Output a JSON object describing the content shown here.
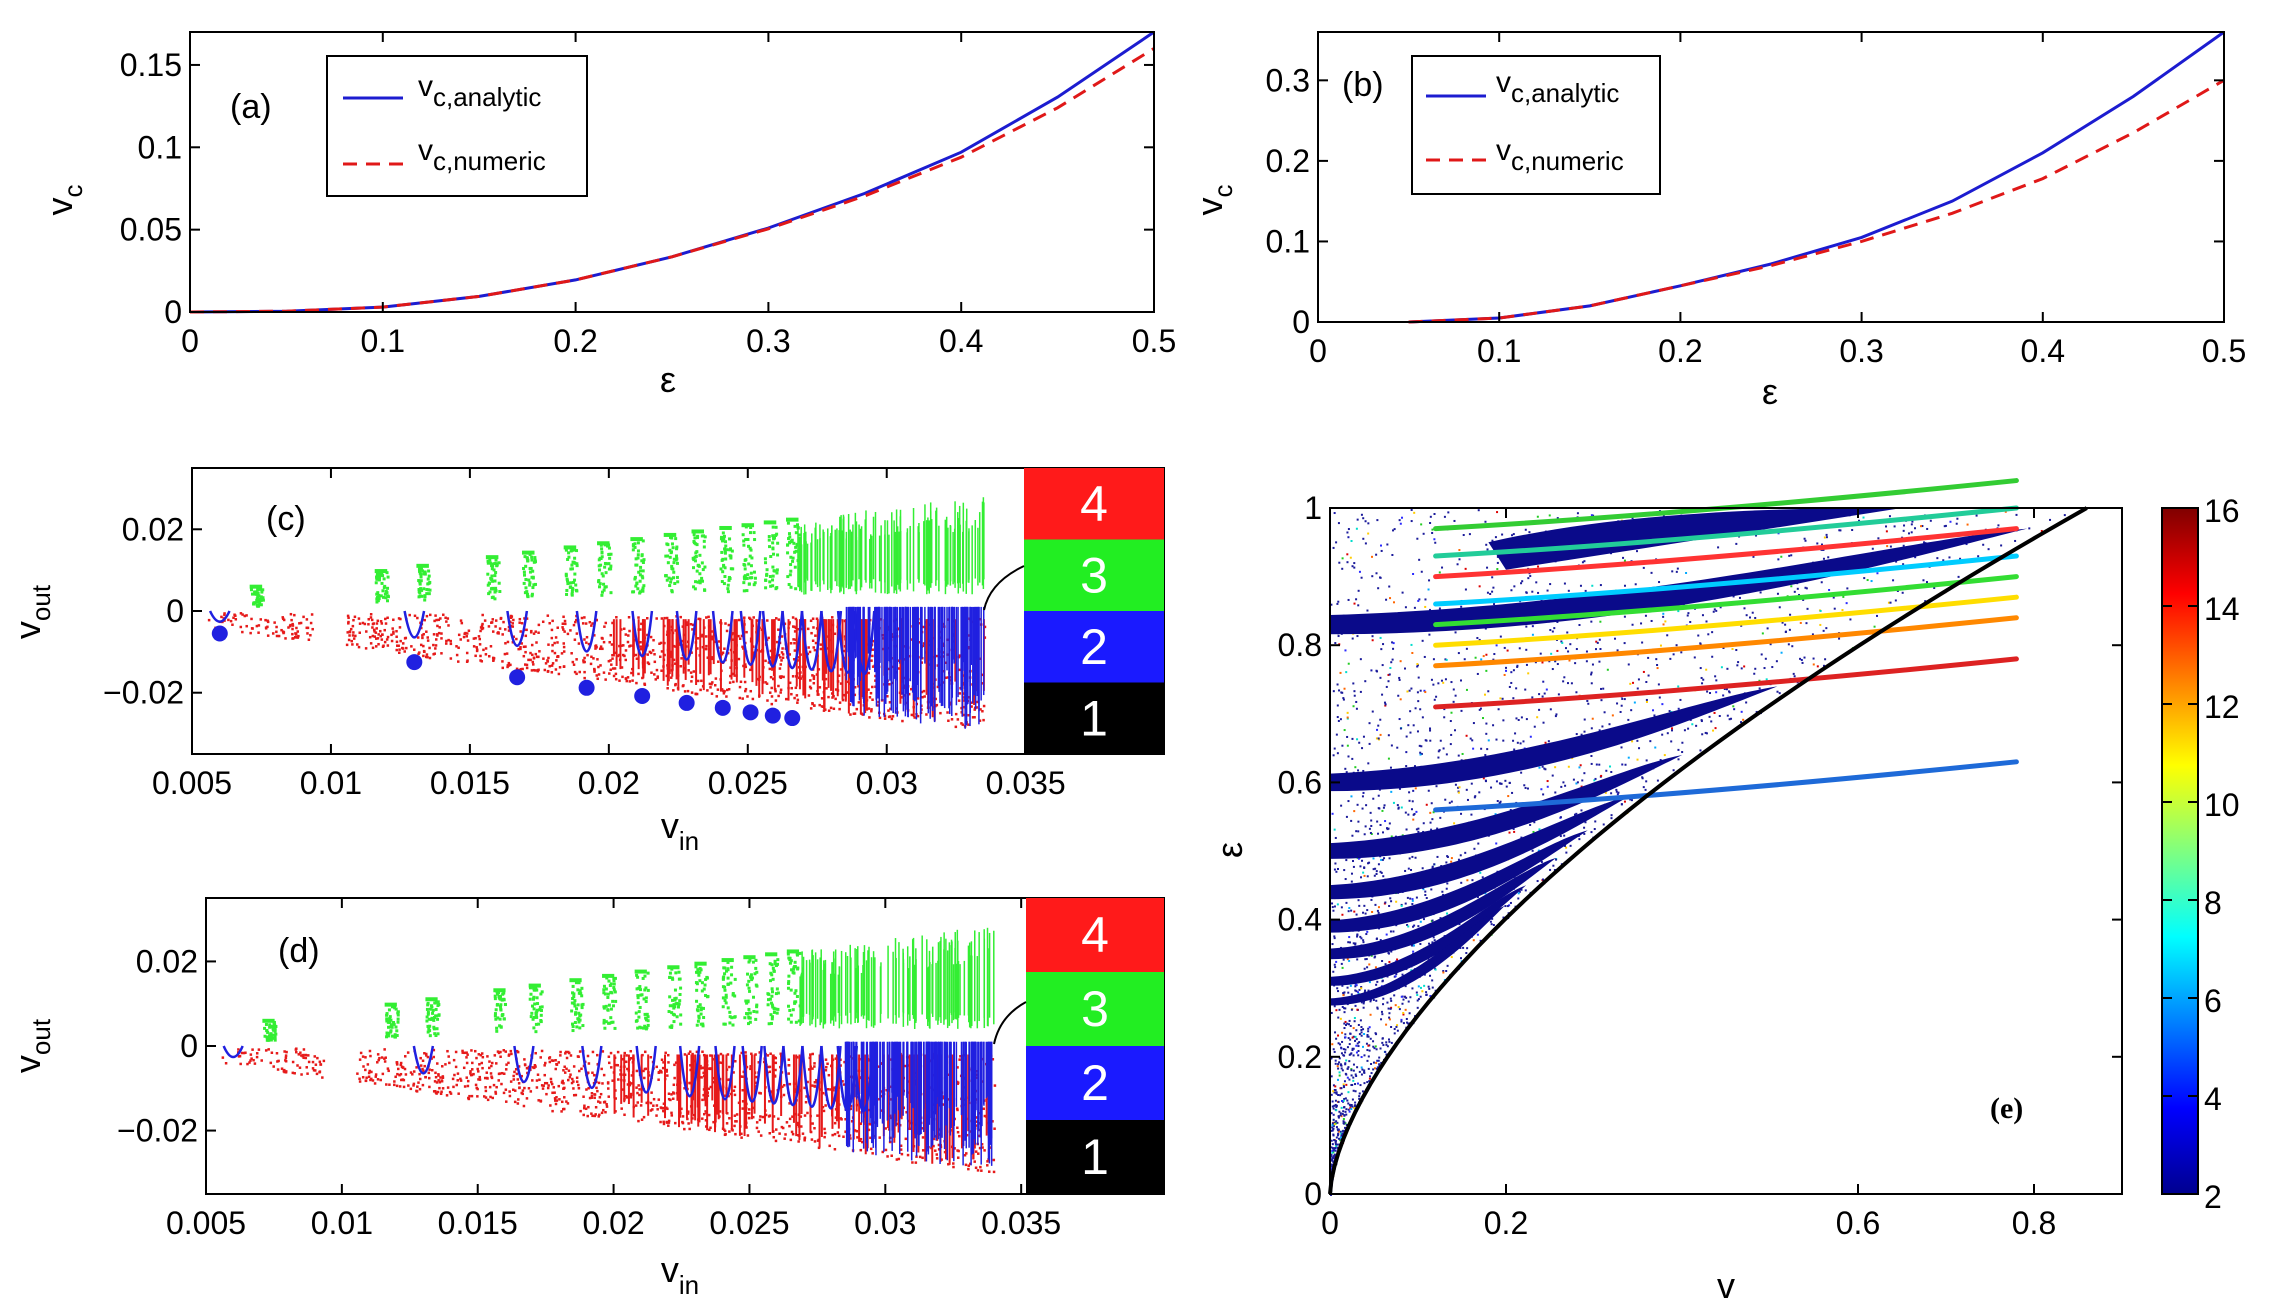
{
  "chart_data": [
    {
      "id": "a",
      "type": "line",
      "panel_label": "(a)",
      "xlabel": "ε",
      "ylabel": "v",
      "ylabel_sub": "c",
      "xlim": [
        0,
        0.5
      ],
      "ylim": [
        0,
        0.17
      ],
      "xticks": [
        0,
        0.1,
        0.2,
        0.3,
        0.4,
        0.5
      ],
      "xtick_labels": [
        "0",
        "0.1",
        "0.2",
        "0.3",
        "0.4",
        "0.5"
      ],
      "yticks": [
        0,
        0.05,
        0.1,
        0.15
      ],
      "ytick_labels": [
        "0",
        "0.05",
        "0.1",
        "0.15"
      ],
      "legend": [
        {
          "main": "v",
          "sub": "c,analytic",
          "color": "#1c1cd0",
          "dash": "solid"
        },
        {
          "main": "v",
          "sub": "c,numeric",
          "color": "#e01818",
          "dash": "dashed"
        }
      ],
      "series": [
        {
          "name": "v_c,analytic",
          "color": "#1c1cd0",
          "dash": "solid",
          "x": [
            0,
            0.05,
            0.1,
            0.15,
            0.2,
            0.25,
            0.3,
            0.35,
            0.4,
            0.45,
            0.5
          ],
          "y": [
            0,
            0.0005,
            0.003,
            0.0095,
            0.0195,
            0.0335,
            0.051,
            0.072,
            0.097,
            0.1305,
            0.17
          ]
        },
        {
          "name": "v_c,numeric",
          "color": "#e01818",
          "dash": "dashed",
          "x": [
            0,
            0.05,
            0.1,
            0.15,
            0.2,
            0.25,
            0.3,
            0.35,
            0.4,
            0.45,
            0.5
          ],
          "y": [
            0,
            0.0005,
            0.003,
            0.0095,
            0.0195,
            0.0335,
            0.0505,
            0.0705,
            0.094,
            0.124,
            0.16
          ]
        }
      ]
    },
    {
      "id": "b",
      "type": "line",
      "panel_label": "(b)",
      "xlabel": "ε",
      "ylabel": "v",
      "ylabel_sub": "c",
      "xlim": [
        0,
        0.5
      ],
      "ylim": [
        0,
        0.36
      ],
      "xticks": [
        0,
        0.1,
        0.2,
        0.3,
        0.4,
        0.5
      ],
      "xtick_labels": [
        "0",
        "0.1",
        "0.2",
        "0.3",
        "0.4",
        "0.5"
      ],
      "yticks": [
        0,
        0.1,
        0.2,
        0.3
      ],
      "ytick_labels": [
        "0",
        "0.1",
        "0.2",
        "0.3"
      ],
      "legend": [
        {
          "main": "v",
          "sub": "c,analytic",
          "color": "#1c1cd0",
          "dash": "solid"
        },
        {
          "main": "v",
          "sub": "c,numeric",
          "color": "#e01818",
          "dash": "dashed"
        }
      ],
      "series": [
        {
          "name": "v_c,analytic",
          "color": "#1c1cd0",
          "dash": "solid",
          "x": [
            0.05,
            0.1,
            0.15,
            0.2,
            0.25,
            0.3,
            0.35,
            0.4,
            0.45,
            0.5
          ],
          "y": [
            0,
            0.005,
            0.02,
            0.045,
            0.072,
            0.105,
            0.15,
            0.21,
            0.28,
            0.36
          ]
        },
        {
          "name": "v_c,numeric",
          "color": "#e01818",
          "dash": "dashed",
          "x": [
            0.05,
            0.1,
            0.15,
            0.2,
            0.25,
            0.3,
            0.35,
            0.4,
            0.45,
            0.5
          ],
          "y": [
            0,
            0.005,
            0.02,
            0.045,
            0.07,
            0.1,
            0.135,
            0.178,
            0.235,
            0.3
          ]
        }
      ]
    },
    {
      "id": "c",
      "type": "scatter",
      "panel_label": "(c)",
      "xlabel": "v",
      "xlabel_sub": "in",
      "ylabel": "v",
      "ylabel_sub": "out",
      "xlim": [
        0.005,
        0.0335
      ],
      "ylim": [
        -0.035,
        0.035
      ],
      "xticks": [
        0.005,
        0.01,
        0.015,
        0.02,
        0.025,
        0.03,
        0.035
      ],
      "xtick_labels": [
        "0.005",
        "0.01",
        "0.015",
        "0.02",
        "0.025",
        "0.03",
        "0.035"
      ],
      "yticks": [
        0.02,
        0,
        -0.02
      ],
      "ytick_labels": [
        "0.02",
        "0",
        "−0.02"
      ],
      "bands": [
        {
          "label": "4",
          "color": "#ff1a1a"
        },
        {
          "label": "3",
          "color": "#22ee22"
        },
        {
          "label": "2",
          "color": "#1a1aff"
        },
        {
          "label": "1",
          "color": "#000000"
        }
      ],
      "dot_markers_x": [
        0.006,
        0.013,
        0.0167,
        0.0192,
        0.0212,
        0.0228,
        0.0241,
        0.0251,
        0.0259,
        0.0266
      ],
      "dot_markers_y": [
        -0.0055,
        -0.0125,
        -0.0162,
        -0.0188,
        -0.0208,
        -0.0225,
        -0.0237,
        -0.0248,
        -0.0256,
        -0.0262
      ]
    },
    {
      "id": "d",
      "type": "scatter",
      "panel_label": "(d)",
      "xlabel": "v",
      "xlabel_sub": "in",
      "ylabel": "v",
      "ylabel_sub": "out",
      "xlim": [
        0.005,
        0.034
      ],
      "ylim": [
        -0.035,
        0.035
      ],
      "xticks": [
        0.005,
        0.01,
        0.015,
        0.02,
        0.025,
        0.03,
        0.035
      ],
      "xtick_labels": [
        "0.005",
        "0.01",
        "0.015",
        "0.02",
        "0.025",
        "0.03",
        "0.035"
      ],
      "yticks": [
        0.02,
        0,
        -0.02
      ],
      "ytick_labels": [
        "0.02",
        "0",
        "−0.02"
      ],
      "bands": [
        {
          "label": "4",
          "color": "#ff1a1a"
        },
        {
          "label": "3",
          "color": "#22ee22"
        },
        {
          "label": "2",
          "color": "#1a1aff"
        },
        {
          "label": "1",
          "color": "#000000"
        }
      ]
    },
    {
      "id": "e",
      "type": "heatmap",
      "panel_label": "(e)",
      "xlabel": "v",
      "ylabel": "ε",
      "xlim": [
        0,
        0.9
      ],
      "ylim": [
        0,
        1
      ],
      "xticks": [
        0,
        0.2,
        0.6,
        0.8
      ],
      "xtick_labels": [
        "0",
        "0.2",
        "0.6",
        "0.8"
      ],
      "yticks": [
        0,
        0.2,
        0.4,
        0.6,
        0.8,
        1
      ],
      "ytick_labels": [
        "0",
        "0.2",
        "0.4",
        "0.6",
        "0.8",
        "1"
      ],
      "colorbar_range": [
        2,
        16
      ],
      "colorbar_ticks": [
        2,
        4,
        6,
        8,
        10,
        12,
        14,
        16
      ],
      "colorbar_tick_labels": [
        "2",
        "4",
        "6",
        "8",
        "10",
        "12",
        "14",
        "16"
      ],
      "blue_band_eps": [
        0.83,
        0.6,
        0.5,
        0.44,
        0.39,
        0.35,
        0.31,
        0.28
      ]
    }
  ]
}
